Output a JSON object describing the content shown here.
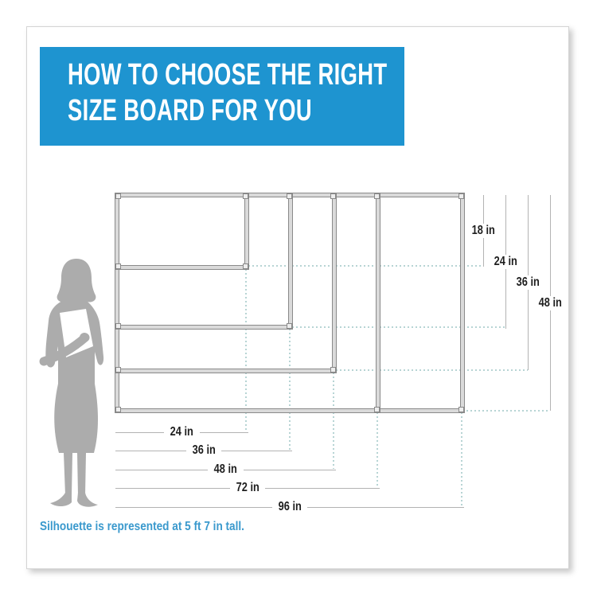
{
  "header": {
    "title_line1": "HOW TO CHOOSE THE RIGHT",
    "title_line2": "SIZE BOARD FOR YOU"
  },
  "footnote": "Silhouette is represented at 5 ft 7 in tall.",
  "colors": {
    "banner_blue": "#1E94D0",
    "footnote_blue": "#3A99CD",
    "silhouette_gray": "#ACACAC",
    "frame_fill": "#DADADA",
    "frame_edge": "#8A8A8A",
    "guide_teal": "#B7D4D4",
    "dimension_line_gray": "#B3B3B3",
    "label_ink": "#1E1E1E"
  },
  "diagram": {
    "boards": [
      {
        "width_in": 24,
        "height_in": 18
      },
      {
        "width_in": 36,
        "height_in": 24
      },
      {
        "width_in": 48,
        "height_in": 36
      },
      {
        "width_in": 72,
        "height_in": 48
      },
      {
        "width_in": 96,
        "height_in": 48
      }
    ],
    "width_labels": [
      "24 in",
      "36 in",
      "48 in",
      "72 in",
      "96 in"
    ],
    "height_labels": [
      "18 in",
      "24 in",
      "36 in",
      "48 in"
    ]
  }
}
